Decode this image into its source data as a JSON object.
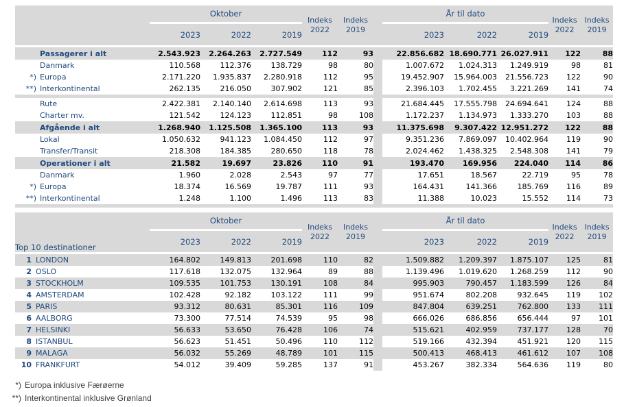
{
  "columns": {
    "october": "Oktober",
    "ytd": "År til dato",
    "years": [
      "2023",
      "2022",
      "2019"
    ],
    "indeks": "Indeks",
    "index_years": [
      "2022",
      "2019"
    ]
  },
  "traffic_table": {
    "rows": [
      {
        "type": "total",
        "prefix": "",
        "label": "Passagerer i alt",
        "values": [
          "2.543.923",
          "2.264.263",
          "2.727.549",
          "112",
          "93",
          "22.856.682",
          "18.690.771",
          "26.027.911",
          "122",
          "88"
        ]
      },
      {
        "type": "sub",
        "prefix": "",
        "label": "Danmark",
        "values": [
          "110.568",
          "112.376",
          "138.729",
          "98",
          "80",
          "1.007.672",
          "1.024.313",
          "1.249.919",
          "98",
          "81"
        ]
      },
      {
        "type": "sub",
        "prefix": "*)",
        "label": "Europa",
        "values": [
          "2.171.220",
          "1.935.837",
          "2.280.918",
          "112",
          "95",
          "19.452.907",
          "15.964.003",
          "21.556.723",
          "122",
          "90"
        ]
      },
      {
        "type": "sub",
        "prefix": "**)",
        "label": "Interkontinental",
        "values": [
          "262.135",
          "216.050",
          "307.902",
          "121",
          "85",
          "2.396.103",
          "1.702.455",
          "3.221.269",
          "141",
          "74"
        ]
      },
      {
        "type": "sep"
      },
      {
        "type": "sub",
        "prefix": "",
        "label": "Rute",
        "values": [
          "2.422.381",
          "2.140.140",
          "2.614.698",
          "113",
          "93",
          "21.684.445",
          "17.555.798",
          "24.694.641",
          "124",
          "88"
        ]
      },
      {
        "type": "sub",
        "prefix": "",
        "label": "Charter mv.",
        "values": [
          "121.542",
          "124.123",
          "112.851",
          "98",
          "108",
          "1.172.237",
          "1.134.973",
          "1.333.270",
          "103",
          "88"
        ]
      },
      {
        "type": "total",
        "prefix": "",
        "label": "Afgående i alt",
        "values": [
          "1.268.940",
          "1.125.508",
          "1.365.100",
          "113",
          "93",
          "11.375.698",
          "9.307.422",
          "12.951.272",
          "122",
          "88"
        ]
      },
      {
        "type": "sub",
        "prefix": "",
        "label": "Lokal",
        "values": [
          "1.050.632",
          "941.123",
          "1.084.450",
          "112",
          "97",
          "9.351.236",
          "7.869.097",
          "10.402.964",
          "119",
          "90"
        ]
      },
      {
        "type": "sub",
        "prefix": "",
        "label": "Transfer/Transit",
        "values": [
          "218.308",
          "184.385",
          "280.650",
          "118",
          "78",
          "2.024.462",
          "1.438.325",
          "2.548.308",
          "141",
          "79"
        ]
      },
      {
        "type": "total",
        "prefix": "",
        "label": "Operationer i alt",
        "values": [
          "21.582",
          "19.697",
          "23.826",
          "110",
          "91",
          "193.470",
          "169.956",
          "224.040",
          "114",
          "86"
        ]
      },
      {
        "type": "sub",
        "prefix": "",
        "label": "Danmark",
        "values": [
          "1.960",
          "2.028",
          "2.543",
          "97",
          "77",
          "17.651",
          "18.567",
          "22.719",
          "95",
          "78"
        ]
      },
      {
        "type": "sub",
        "prefix": "*)",
        "label": "Europa",
        "values": [
          "18.374",
          "16.569",
          "19.787",
          "111",
          "93",
          "164.431",
          "141.366",
          "185.769",
          "116",
          "89"
        ]
      },
      {
        "type": "sub",
        "prefix": "**)",
        "label": "Interkontinental",
        "values": [
          "1.248",
          "1.100",
          "1.496",
          "113",
          "83",
          "11.388",
          "10.023",
          "15.552",
          "114",
          "73"
        ]
      },
      {
        "type": "sep"
      }
    ]
  },
  "destinations_table": {
    "title": "Top 10 destinationer",
    "rows": [
      {
        "rank": "1",
        "city": "LONDON",
        "values": [
          "164.802",
          "149.813",
          "201.698",
          "110",
          "82",
          "1.509.882",
          "1.209.397",
          "1.875.107",
          "125",
          "81"
        ]
      },
      {
        "rank": "2",
        "city": "OSLO",
        "values": [
          "117.618",
          "132.075",
          "132.964",
          "89",
          "88",
          "1.139.496",
          "1.019.620",
          "1.268.259",
          "112",
          "90"
        ]
      },
      {
        "rank": "3",
        "city": "STOCKHOLM",
        "values": [
          "109.535",
          "101.753",
          "130.191",
          "108",
          "84",
          "995.903",
          "790.457",
          "1.183.599",
          "126",
          "84"
        ]
      },
      {
        "rank": "4",
        "city": "AMSTERDAM",
        "values": [
          "102.428",
          "92.182",
          "103.122",
          "111",
          "99",
          "951.674",
          "802.208",
          "932.645",
          "119",
          "102"
        ]
      },
      {
        "rank": "5",
        "city": "PARIS",
        "values": [
          "93.312",
          "80.631",
          "85.301",
          "116",
          "109",
          "847.804",
          "639.251",
          "762.800",
          "133",
          "111"
        ]
      },
      {
        "rank": "6",
        "city": "AALBORG",
        "values": [
          "73.300",
          "77.514",
          "74.539",
          "95",
          "98",
          "666.026",
          "686.856",
          "656.444",
          "97",
          "101"
        ]
      },
      {
        "rank": "7",
        "city": "HELSINKI",
        "values": [
          "56.633",
          "53.650",
          "76.428",
          "106",
          "74",
          "515.621",
          "402.959",
          "737.177",
          "128",
          "70"
        ]
      },
      {
        "rank": "8",
        "city": "ISTANBUL",
        "values": [
          "56.623",
          "51.451",
          "50.496",
          "110",
          "112",
          "519.166",
          "432.394",
          "451.921",
          "120",
          "115"
        ]
      },
      {
        "rank": "9",
        "city": "MALAGA",
        "values": [
          "56.032",
          "55.269",
          "48.789",
          "101",
          "115",
          "500.413",
          "468.413",
          "461.612",
          "107",
          "108"
        ]
      },
      {
        "rank": "10",
        "city": "FRANKFURT",
        "values": [
          "54.012",
          "39.409",
          "59.285",
          "137",
          "91",
          "453.267",
          "382.334",
          "564.636",
          "119",
          "80"
        ]
      }
    ]
  },
  "footnotes": [
    {
      "prefix": "*)",
      "text": "Europa inklusive Færøerne"
    },
    {
      "prefix": "**)",
      "text": "Interkontinental inklusive Grønland"
    }
  ]
}
